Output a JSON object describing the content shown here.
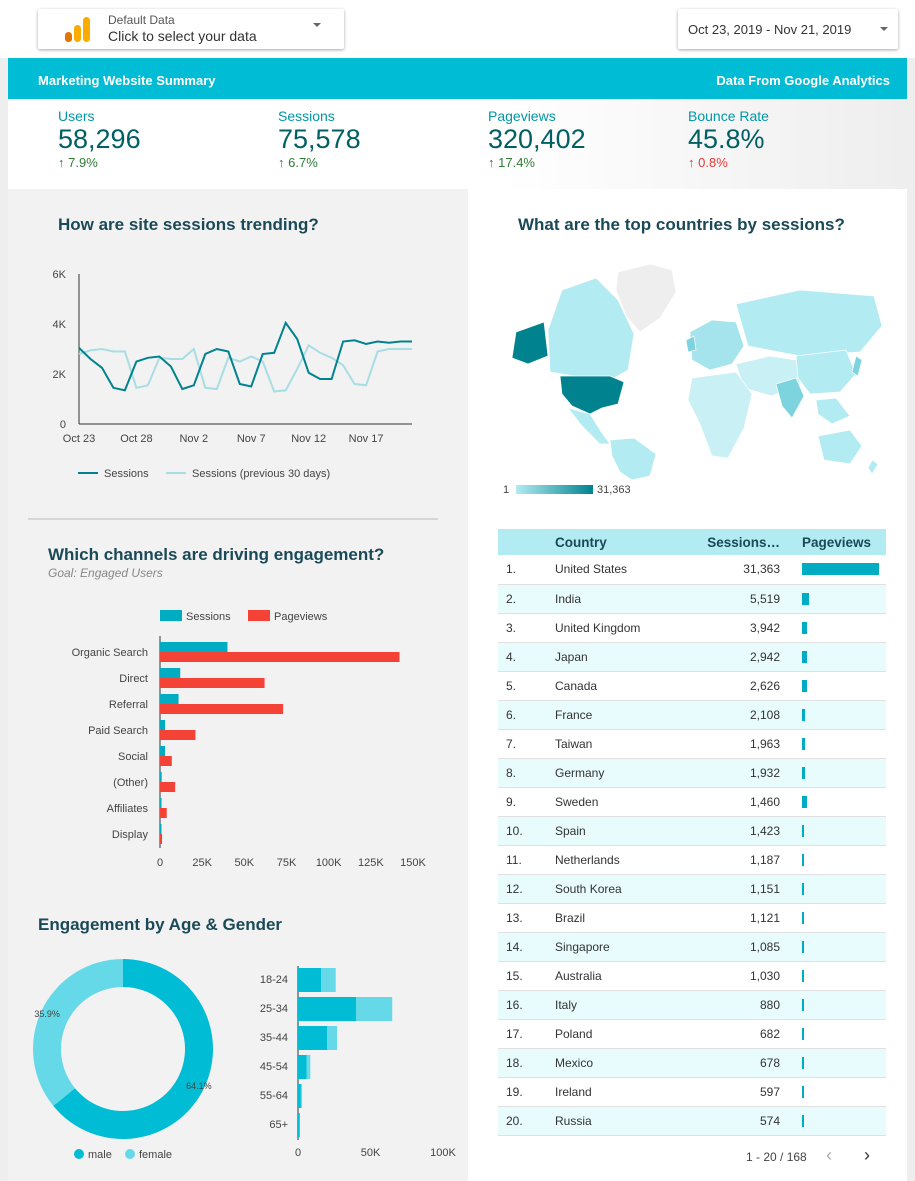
{
  "header": {
    "data_source": {
      "label": "Default Data",
      "action": "Click to select your data"
    },
    "date_range": "Oct 23, 2019 - Nov 21, 2019",
    "banner_title": "Marketing Website Summary",
    "banner_source": "Data From Google Analytics"
  },
  "scorecards": [
    {
      "title": "Users",
      "value": "58,296",
      "delta": "7.9%",
      "direction": "up",
      "color": "#2e7d32"
    },
    {
      "title": "Sessions",
      "value": "75,578",
      "delta": "6.7%",
      "direction": "up",
      "color": "#2e7d32"
    },
    {
      "title": "Pageviews",
      "value": "320,402",
      "delta": "17.4%",
      "direction": "up",
      "color": "#2e7d32"
    },
    {
      "title": "Bounce Rate",
      "value": "45.8%",
      "delta": "0.8%",
      "direction": "up",
      "color": "#e53935"
    }
  ],
  "trend": {
    "title": "How are site sessions trending?",
    "legend": [
      "Sessions",
      "Sessions (previous 30 days)"
    ]
  },
  "channels": {
    "title": "Which channels are driving engagement?",
    "subtitle": "Goal: Engaged Users",
    "legend": [
      "Sessions",
      "Pageviews"
    ]
  },
  "age_gender": {
    "title": "Engagement by Age & Gender",
    "legend": [
      "male",
      "female"
    ]
  },
  "map": {
    "title": "What are the top countries by sessions?",
    "scale_min": "1",
    "scale_max": "31,363"
  },
  "country_table": {
    "headers": [
      "Country",
      "Sessions…",
      "Pageviews"
    ],
    "pagination": "1 - 20 / 168",
    "rows": [
      {
        "rank": "1.",
        "country": "United States",
        "sessions": "31,363"
      },
      {
        "rank": "2.",
        "country": "India",
        "sessions": "5,519"
      },
      {
        "rank": "3.",
        "country": "United Kingdom",
        "sessions": "3,942"
      },
      {
        "rank": "4.",
        "country": "Japan",
        "sessions": "2,942"
      },
      {
        "rank": "5.",
        "country": "Canada",
        "sessions": "2,626"
      },
      {
        "rank": "6.",
        "country": "France",
        "sessions": "2,108"
      },
      {
        "rank": "7.",
        "country": "Taiwan",
        "sessions": "1,963"
      },
      {
        "rank": "8.",
        "country": "Germany",
        "sessions": "1,932"
      },
      {
        "rank": "9.",
        "country": "Sweden",
        "sessions": "1,460"
      },
      {
        "rank": "10.",
        "country": "Spain",
        "sessions": "1,423"
      },
      {
        "rank": "11.",
        "country": "Netherlands",
        "sessions": "1,187"
      },
      {
        "rank": "12.",
        "country": "South Korea",
        "sessions": "1,151"
      },
      {
        "rank": "13.",
        "country": "Brazil",
        "sessions": "1,121"
      },
      {
        "rank": "14.",
        "country": "Singapore",
        "sessions": "1,085"
      },
      {
        "rank": "15.",
        "country": "Australia",
        "sessions": "1,030"
      },
      {
        "rank": "16.",
        "country": "Italy",
        "sessions": "880"
      },
      {
        "rank": "17.",
        "country": "Poland",
        "sessions": "682"
      },
      {
        "rank": "18.",
        "country": "Mexico",
        "sessions": "678"
      },
      {
        "rank": "19.",
        "country": "Ireland",
        "sessions": "597"
      },
      {
        "rank": "20.",
        "country": "Russia",
        "sessions": "574"
      }
    ],
    "pageviews_fraction": [
      1.0,
      0.09,
      0.07,
      0.06,
      0.06,
      0.035,
      0.035,
      0.035,
      0.06,
      0.02,
      0.02,
      0.02,
      0.02,
      0.02,
      0.02,
      0.02,
      0.02,
      0.02,
      0.02,
      0.02
    ]
  },
  "icons": {
    "analytics": "google-analytics-logo",
    "dropdown": "caret-down-icon",
    "up": "arrow-up-icon",
    "prev": "chevron-left-icon",
    "next": "chevron-right-icon"
  },
  "colors": {
    "accent": "#00bcd4",
    "sessions": "#00acc1",
    "sessions_line": "#00838f",
    "previous_line": "#a8dde3",
    "pageviews": "#f44336",
    "female": "#66d9e8",
    "male": "#00bcd4",
    "map_high": "#00838f",
    "map_low": "#b2ebf2"
  },
  "chart_data": [
    {
      "type": "line",
      "title": "How are site sessions trending?",
      "xlabel": "",
      "ylabel": "",
      "x_ticks": [
        "Oct 23",
        "Oct 28",
        "Nov 2",
        "Nov 7",
        "Nov 12",
        "Nov 17"
      ],
      "y_ticks": [
        "0",
        "2K",
        "4K",
        "6K"
      ],
      "ylim": [
        0,
        6000
      ],
      "x": [
        "Oct 23",
        "Oct 24",
        "Oct 25",
        "Oct 26",
        "Oct 27",
        "Oct 28",
        "Oct 29",
        "Oct 30",
        "Oct 31",
        "Nov 1",
        "Nov 2",
        "Nov 3",
        "Nov 4",
        "Nov 5",
        "Nov 6",
        "Nov 7",
        "Nov 8",
        "Nov 9",
        "Nov 10",
        "Nov 11",
        "Nov 12",
        "Nov 13",
        "Nov 14",
        "Nov 15",
        "Nov 16",
        "Nov 17",
        "Nov 18",
        "Nov 19",
        "Nov 20",
        "Nov 21"
      ],
      "series": [
        {
          "name": "Sessions",
          "values": [
            3050,
            2600,
            2250,
            1450,
            1350,
            2500,
            2650,
            2700,
            2300,
            1400,
            1550,
            2800,
            3000,
            2900,
            1600,
            1500,
            2800,
            2850,
            4050,
            3400,
            2050,
            1800,
            1800,
            3300,
            3350,
            3200,
            3300,
            3250,
            3300,
            3300
          ]
        },
        {
          "name": "Sessions (previous 30 days)",
          "values": [
            2800,
            2950,
            3000,
            2900,
            2900,
            1450,
            1550,
            2650,
            2600,
            2600,
            3000,
            1450,
            1400,
            2650,
            2500,
            2700,
            2500,
            1300,
            1350,
            2200,
            3150,
            2850,
            2650,
            2350,
            1600,
            1550,
            2900,
            3000,
            3000,
            3000
          ]
        }
      ]
    },
    {
      "type": "bar",
      "title": "Which channels are driving engagement?",
      "orientation": "horizontal",
      "categories": [
        "Organic Search",
        "Direct",
        "Referral",
        "Paid Search",
        "Social",
        "(Other)",
        "Affiliates",
        "Display"
      ],
      "x_ticks": [
        "0",
        "25K",
        "50K",
        "75K",
        "100K",
        "125K",
        "150K"
      ],
      "xlim": [
        0,
        150000
      ],
      "series": [
        {
          "name": "Sessions",
          "values": [
            40000,
            12000,
            11000,
            3000,
            3000,
            1000,
            800,
            300
          ]
        },
        {
          "name": "Pageviews",
          "values": [
            142000,
            62000,
            73000,
            21000,
            7000,
            9000,
            4000,
            1200
          ]
        }
      ]
    },
    {
      "type": "pie",
      "title": "Engagement by Age & Gender",
      "categories": [
        "male",
        "female"
      ],
      "values": [
        64.1,
        35.9
      ],
      "labels": [
        "64.1%",
        "35.9%"
      ]
    },
    {
      "type": "bar",
      "orientation": "horizontal",
      "stacked": true,
      "categories": [
        "18-24",
        "25-34",
        "35-44",
        "45-54",
        "55-64",
        "65+"
      ],
      "x_ticks": [
        "0",
        "50K",
        "100K"
      ],
      "xlim": [
        0,
        100000
      ],
      "series": [
        {
          "name": "male",
          "values": [
            16000,
            40000,
            20000,
            6000,
            2000,
            800
          ]
        },
        {
          "name": "female",
          "values": [
            10000,
            25000,
            7000,
            2500,
            800,
            300
          ]
        }
      ]
    }
  ]
}
